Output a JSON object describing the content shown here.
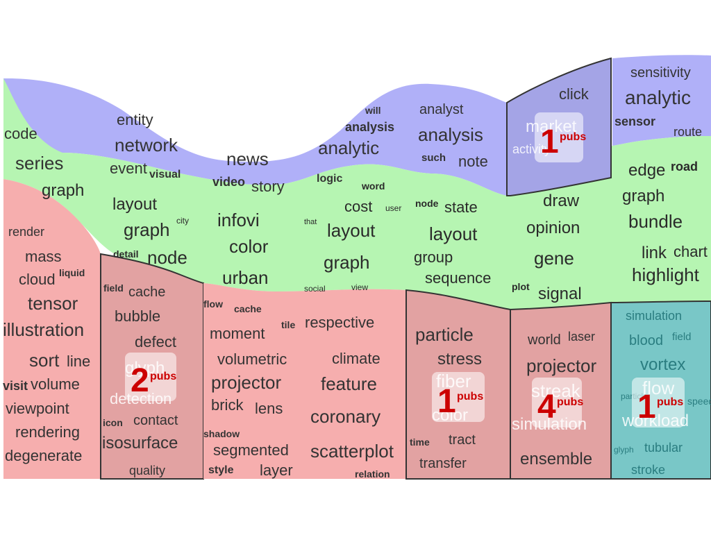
{
  "colors": {
    "blue": "#b0b0f8",
    "green": "#b6f5b2",
    "red": "#f6aeae",
    "red_selected": "#e2a2a2",
    "blue_selected": "#a4a4e6",
    "teal": "#79c7c7",
    "outline": "#333333",
    "badge": "#cc0000"
  },
  "badge_unit": "pubs",
  "badges": [
    {
      "id": "b-market",
      "count": "1"
    },
    {
      "id": "b-glyph",
      "count": "2"
    },
    {
      "id": "b-fiber",
      "count": "1"
    },
    {
      "id": "b-streak",
      "count": "4"
    },
    {
      "id": "b-flow",
      "count": "1"
    }
  ],
  "words": {
    "blue": [
      "entity",
      "network",
      "event",
      "visual",
      "code",
      "series",
      "news",
      "video",
      "story",
      "will",
      "analysis",
      "analytic",
      "logic",
      "analyst",
      "analysis",
      "such",
      "note",
      "click",
      "market",
      "activity",
      "sensitivity",
      "analytic",
      "sensor",
      "route"
    ],
    "green": [
      "graph",
      "layout",
      "graph",
      "city",
      "detail",
      "node",
      "infovi",
      "color",
      "urban",
      "cost",
      "user",
      "word",
      "that",
      "layout",
      "graph",
      "social",
      "view",
      "node",
      "state",
      "layout",
      "group",
      "sequence",
      "draw",
      "opinion",
      "gene",
      "plot",
      "signal",
      "edge",
      "road",
      "graph",
      "bundle",
      "link",
      "chart",
      "highlight"
    ],
    "red": [
      "render",
      "mass",
      "cloud",
      "liquid",
      "tensor",
      "illustration",
      "sort",
      "line",
      "visit",
      "volume",
      "viewpoint",
      "rendering",
      "degenerate",
      "field",
      "cache",
      "bubble",
      "defect",
      "glyph",
      "detection",
      "icon",
      "contact",
      "isosurface",
      "quality",
      "flow",
      "cache",
      "moment",
      "tile",
      "respective",
      "volumetric",
      "climate",
      "projector",
      "feature",
      "brick",
      "lens",
      "coronary",
      "shadow",
      "segmented",
      "scatterplot",
      "style",
      "layer",
      "relation",
      "particle",
      "stress",
      "fiber",
      "color",
      "time",
      "tract",
      "transfer",
      "world",
      "laser",
      "projector",
      "streak",
      "simulation",
      "ensemble"
    ],
    "teal": [
      "simulation",
      "blood",
      "field",
      "vortex",
      "particle",
      "flow",
      "speed",
      "workload",
      "glyph",
      "tubular",
      "stroke"
    ]
  }
}
